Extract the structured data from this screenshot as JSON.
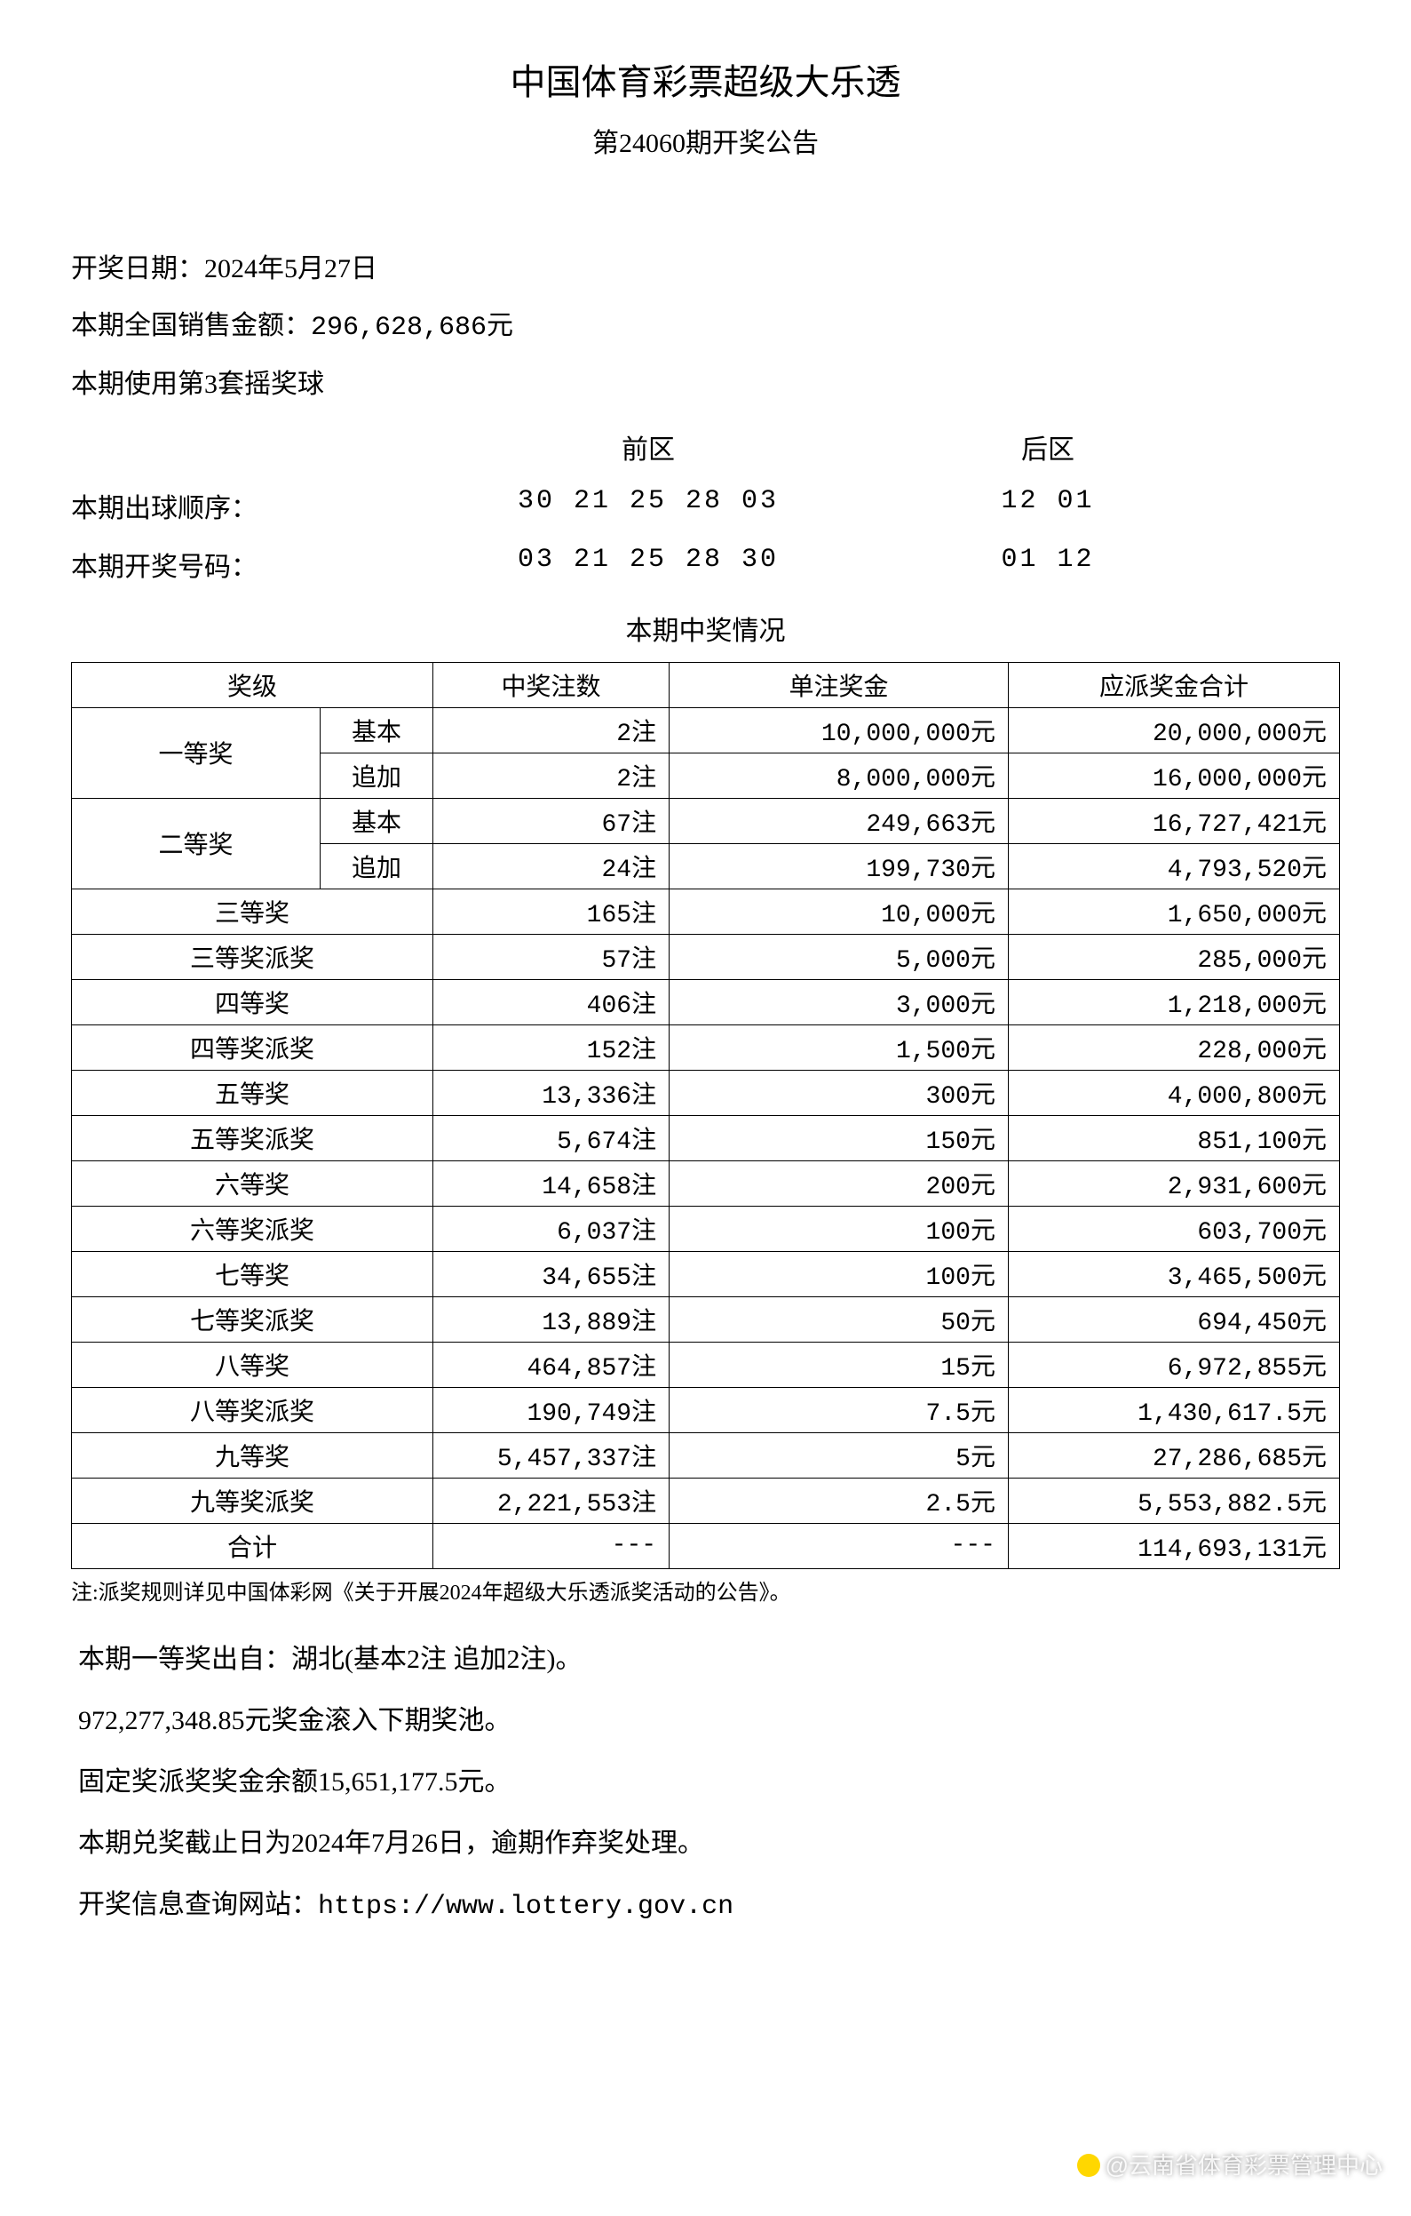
{
  "header": {
    "title": "中国体育彩票超级大乐透",
    "subtitle": "第24060期开奖公告"
  },
  "info": {
    "date_label": "开奖日期：",
    "date_value": "2024年5月27日",
    "sales_label": "本期全国销售金额：",
    "sales_value": "296,628,686元",
    "ball_set": "本期使用第3套摇奖球"
  },
  "numbers": {
    "front_label": "前区",
    "back_label": "后区",
    "draw_order_label": "本期出球顺序：",
    "draw_order_front": "30 21 25 28 03",
    "draw_order_back": "12 01",
    "winning_label": "本期开奖号码：",
    "winning_front": "03 21 25 28 30",
    "winning_back": "01 12"
  },
  "table": {
    "title": "本期中奖情况",
    "headers": {
      "level": "奖级",
      "count": "中奖注数",
      "prize": "单注奖金",
      "total": "应派奖金合计"
    },
    "first_prize_label": "一等奖",
    "second_prize_label": "二等奖",
    "basic_label": "基本",
    "addon_label": "追加",
    "rows": [
      {
        "level": "一等奖-基本",
        "count": "2注",
        "prize": "10,000,000元",
        "total": "20,000,000元"
      },
      {
        "level": "一等奖-追加",
        "count": "2注",
        "prize": "8,000,000元",
        "total": "16,000,000元"
      },
      {
        "level": "二等奖-基本",
        "count": "67注",
        "prize": "249,663元",
        "total": "16,727,421元"
      },
      {
        "level": "二等奖-追加",
        "count": "24注",
        "prize": "199,730元",
        "total": "4,793,520元"
      },
      {
        "level": "三等奖",
        "count": "165注",
        "prize": "10,000元",
        "total": "1,650,000元"
      },
      {
        "level": "三等奖派奖",
        "count": "57注",
        "prize": "5,000元",
        "total": "285,000元"
      },
      {
        "level": "四等奖",
        "count": "406注",
        "prize": "3,000元",
        "total": "1,218,000元"
      },
      {
        "level": "四等奖派奖",
        "count": "152注",
        "prize": "1,500元",
        "total": "228,000元"
      },
      {
        "level": "五等奖",
        "count": "13,336注",
        "prize": "300元",
        "total": "4,000,800元"
      },
      {
        "level": "五等奖派奖",
        "count": "5,674注",
        "prize": "150元",
        "total": "851,100元"
      },
      {
        "level": "六等奖",
        "count": "14,658注",
        "prize": "200元",
        "total": "2,931,600元"
      },
      {
        "level": "六等奖派奖",
        "count": "6,037注",
        "prize": "100元",
        "total": "603,700元"
      },
      {
        "level": "七等奖",
        "count": "34,655注",
        "prize": "100元",
        "total": "3,465,500元"
      },
      {
        "level": "七等奖派奖",
        "count": "13,889注",
        "prize": "50元",
        "total": "694,450元"
      },
      {
        "level": "八等奖",
        "count": "464,857注",
        "prize": "15元",
        "total": "6,972,855元"
      },
      {
        "level": "八等奖派奖",
        "count": "190,749注",
        "prize": "7.5元",
        "total": "1,430,617.5元"
      },
      {
        "level": "九等奖",
        "count": "5,457,337注",
        "prize": "5元",
        "total": "27,286,685元"
      },
      {
        "level": "九等奖派奖",
        "count": "2,221,553注",
        "prize": "2.5元",
        "total": "5,553,882.5元"
      }
    ],
    "sum_label": "合计",
    "sum_count": "---",
    "sum_prize": "---",
    "sum_total": "114,693,131元"
  },
  "note": "注:派奖规则详见中国体彩网《关于开展2024年超级大乐透派奖活动的公告》。",
  "footer": {
    "line1": "本期一等奖出自：湖北(基本2注 追加2注)。",
    "line2": "972,277,348.85元奖金滚入下期奖池。",
    "line3": "固定奖派奖奖金余额15,651,177.5元。",
    "line4": "本期兑奖截止日为2024年7月26日，逾期作弃奖处理。",
    "line5_label": "开奖信息查询网站：",
    "line5_url": "https://www.lottery.gov.cn"
  },
  "watermark": "@云南省体育彩票管理中心"
}
